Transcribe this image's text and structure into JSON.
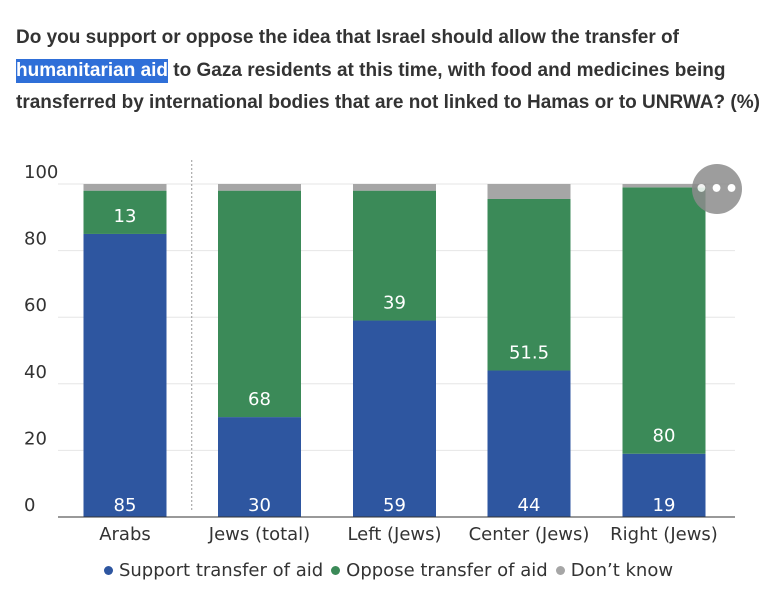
{
  "title": {
    "before": "Do you support or oppose the idea that Israel should allow the transfer of ",
    "highlight": "humanitarian aid",
    "after": " to Gaza residents at this time, with food and medicines being transferred by international bodies that are not linked to Hamas or to UNRWA? (%)"
  },
  "menu": {
    "label": "•••"
  },
  "chart_data": {
    "type": "bar",
    "stacked": true,
    "categories": [
      "Arabs",
      "Jews (total)",
      "Left (Jews)",
      "Center (Jews)",
      "Right (Jews)"
    ],
    "series": [
      {
        "name": "Support transfer of aid",
        "color": "#2e56a0",
        "values": [
          85,
          30,
          59,
          44,
          19
        ]
      },
      {
        "name": "Oppose transfer of aid",
        "color": "#3b8a58",
        "values": [
          13,
          68,
          39,
          51.5,
          80
        ]
      },
      {
        "name": "Don’t know",
        "color": "#a6a6a6",
        "values": [
          2,
          2,
          2,
          4.5,
          1
        ]
      }
    ],
    "labeled_series": [
      "Support transfer of aid",
      "Oppose transfer of aid"
    ],
    "y_ticks": [
      "0",
      "20",
      "40",
      "60",
      "80",
      "100"
    ],
    "ylim": [
      0,
      100
    ],
    "grid": true,
    "divider_after_category": "Arabs",
    "legend_position": "bottom"
  }
}
